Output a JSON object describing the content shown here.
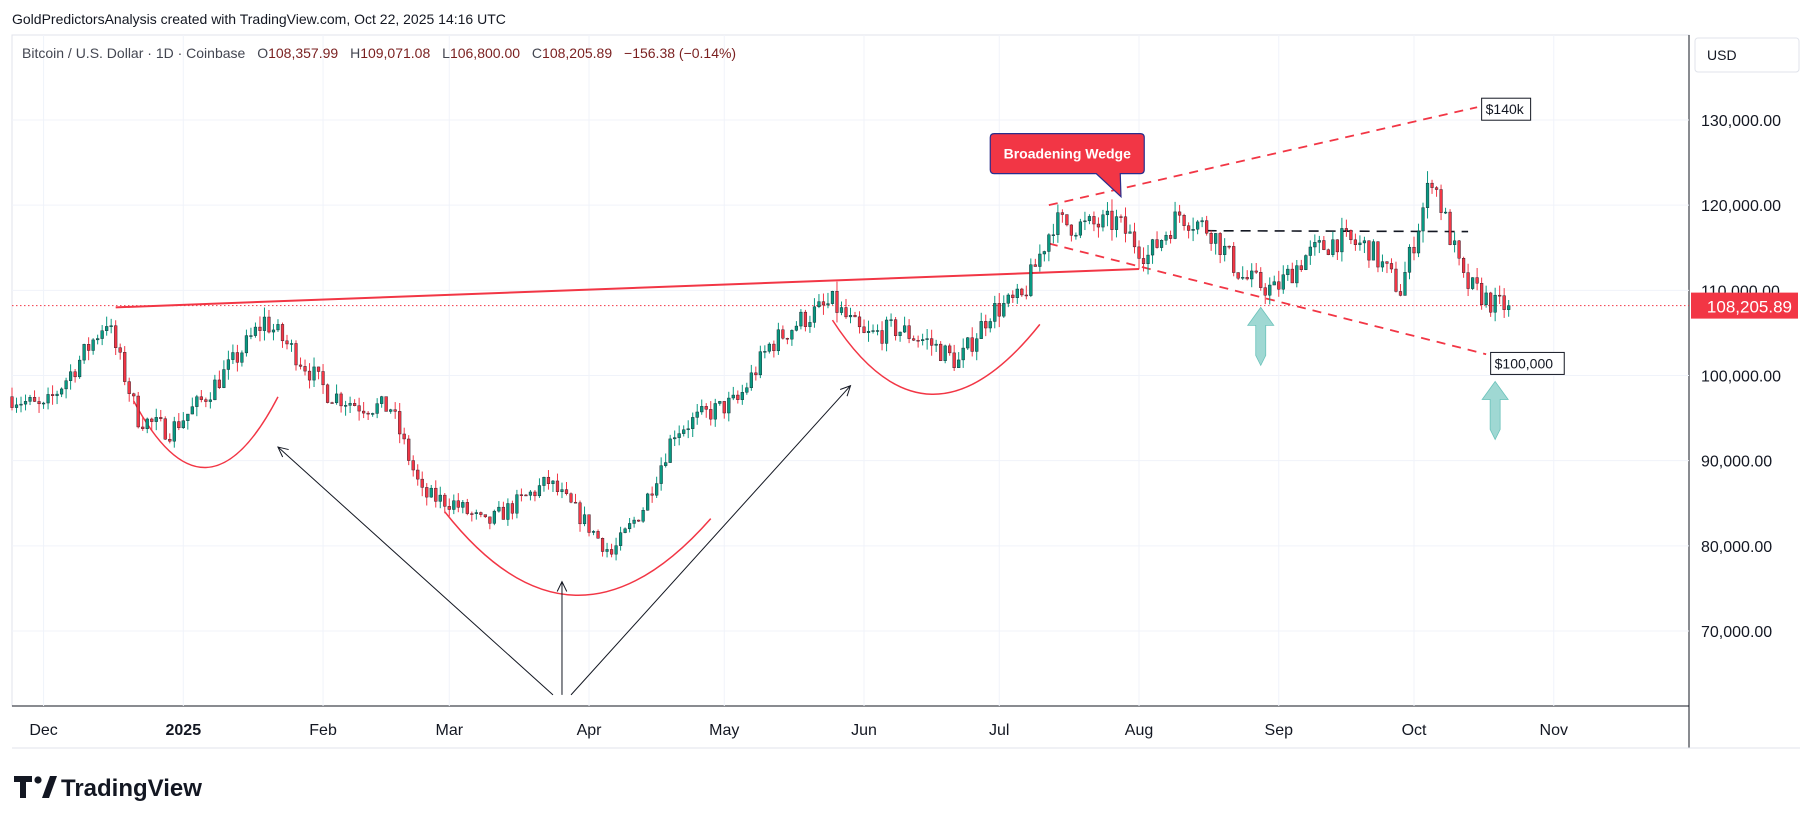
{
  "attribution": "GoldPredictorsAnalysis created with TradingView.com, Oct 22, 2025 14:16 UTC",
  "symbol_line": {
    "instrument": "Bitcoin / U.S. Dollar · 1D · Coinbase",
    "open_label": "O",
    "open": "108,357.99",
    "high_label": "H",
    "high": "109,071.08",
    "low_label": "L",
    "low": "106,800.00",
    "close_label": "C",
    "close": "108,205.89",
    "change": "−156.38 (−0.14%)"
  },
  "currency": "USD",
  "last_price_tag": "108,205.89",
  "logo_text": "TradingView",
  "colors": {
    "up": "#089981",
    "down": "#f23645",
    "pattern": "#f23645",
    "callout_bg": "#f23645",
    "callout_border": "#2a2e8c",
    "neckline": "#131722",
    "arrow": "#9fd8d3",
    "grid": "#f0f3fa"
  },
  "annotations": {
    "wedge_label": "Broadening Wedge",
    "target_high": "$140k",
    "target_low": "$100,000"
  },
  "chart_data": {
    "type": "candlestick",
    "title": "Bitcoin / U.S. Dollar · 1D · Coinbase",
    "ylabel": "USD",
    "y_ticks": [
      "130,000.00",
      "120,000.00",
      "110,000.00",
      "100,000.00",
      "90,000.00",
      "80,000.00",
      "70,000.00"
    ],
    "y_tick_values": [
      130000,
      120000,
      110000,
      100000,
      90000,
      80000,
      70000
    ],
    "x_ticks": [
      "Dec",
      "2025",
      "Feb",
      "Mar",
      "Apr",
      "May",
      "Jun",
      "Jul",
      "Aug",
      "Sep",
      "Oct",
      "Nov"
    ],
    "x_tick_dates": [
      "2024-12-01",
      "2025-01-01",
      "2025-02-01",
      "2025-03-01",
      "2025-04-01",
      "2025-05-01",
      "2025-06-01",
      "2025-07-01",
      "2025-08-01",
      "2025-09-01",
      "2025-10-01",
      "2025-11-01"
    ],
    "ylim": [
      61000,
      139000
    ],
    "xlim": [
      "2024-11-24",
      "2025-12-01"
    ],
    "last_close": 108205.89,
    "weekly_closes": [
      {
        "date": "2024-11-24",
        "close": 97500
      },
      {
        "date": "2024-12-01",
        "close": 96000
      },
      {
        "date": "2024-12-08",
        "close": 101000
      },
      {
        "date": "2024-12-15",
        "close": 106500
      },
      {
        "date": "2024-12-22",
        "close": 95000
      },
      {
        "date": "2024-12-29",
        "close": 93500
      },
      {
        "date": "2025-01-05",
        "close": 97000
      },
      {
        "date": "2025-01-12",
        "close": 101500
      },
      {
        "date": "2025-01-19",
        "close": 106500
      },
      {
        "date": "2025-01-26",
        "close": 102500
      },
      {
        "date": "2025-02-02",
        "close": 98000
      },
      {
        "date": "2025-02-09",
        "close": 96500
      },
      {
        "date": "2025-02-16",
        "close": 96200
      },
      {
        "date": "2025-02-23",
        "close": 86000
      },
      {
        "date": "2025-03-02",
        "close": 85000
      },
      {
        "date": "2025-03-09",
        "close": 82500
      },
      {
        "date": "2025-03-16",
        "close": 85000
      },
      {
        "date": "2025-03-23",
        "close": 87500
      },
      {
        "date": "2025-03-30",
        "close": 83500
      },
      {
        "date": "2025-04-06",
        "close": 79000
      },
      {
        "date": "2025-04-13",
        "close": 84500
      },
      {
        "date": "2025-04-20",
        "close": 93500
      },
      {
        "date": "2025-04-27",
        "close": 95500
      },
      {
        "date": "2025-05-04",
        "close": 97000
      },
      {
        "date": "2025-05-11",
        "close": 103500
      },
      {
        "date": "2025-05-18",
        "close": 106500
      },
      {
        "date": "2025-05-25",
        "close": 108500
      },
      {
        "date": "2025-06-01",
        "close": 104500
      },
      {
        "date": "2025-06-08",
        "close": 105500
      },
      {
        "date": "2025-06-15",
        "close": 104000
      },
      {
        "date": "2025-06-22",
        "close": 101500
      },
      {
        "date": "2025-06-29",
        "close": 107500
      },
      {
        "date": "2025-07-06",
        "close": 109000
      },
      {
        "date": "2025-07-13",
        "close": 118000
      },
      {
        "date": "2025-07-20",
        "close": 117500
      },
      {
        "date": "2025-07-27",
        "close": 118000
      },
      {
        "date": "2025-08-03",
        "close": 114000
      },
      {
        "date": "2025-08-10",
        "close": 119000
      },
      {
        "date": "2025-08-17",
        "close": 117000
      },
      {
        "date": "2025-08-24",
        "close": 111500
      },
      {
        "date": "2025-08-31",
        "close": 110000
      },
      {
        "date": "2025-09-07",
        "close": 114000
      },
      {
        "date": "2025-09-14",
        "close": 116000
      },
      {
        "date": "2025-09-21",
        "close": 115000
      },
      {
        "date": "2025-09-28",
        "close": 110000
      },
      {
        "date": "2025-10-05",
        "close": 123500
      },
      {
        "date": "2025-10-12",
        "close": 111000
      },
      {
        "date": "2025-10-19",
        "close": 108205.89
      }
    ]
  }
}
